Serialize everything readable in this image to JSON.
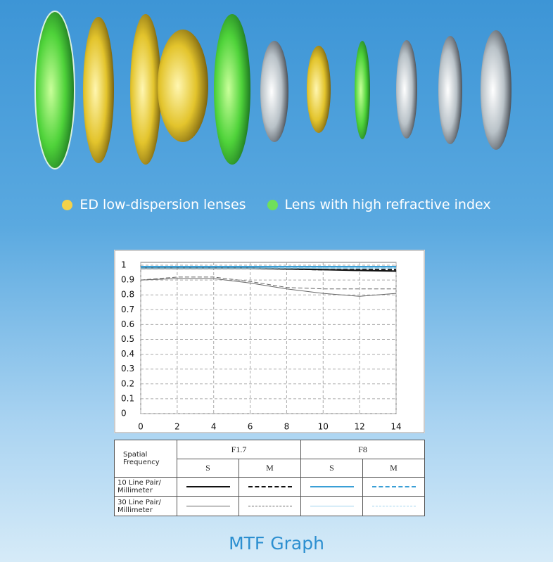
{
  "legend": [
    {
      "label": "ED low-dispersion lenses",
      "color": "#f4d24a"
    },
    {
      "label": "Lens with high refractive index",
      "color": "#6fe05a"
    }
  ],
  "chart_data": {
    "type": "line",
    "x": [
      0,
      2,
      4,
      6,
      8,
      10,
      12,
      14
    ],
    "xlim": [
      0,
      14
    ],
    "xticks": [
      0,
      2,
      4,
      6,
      8,
      10,
      12,
      14
    ],
    "ylim": [
      0,
      1
    ],
    "yticks": [
      0,
      0.1,
      0.2,
      0.3,
      0.4,
      0.5,
      0.6,
      0.7,
      0.8,
      0.9,
      1
    ],
    "grid": true,
    "series": [
      {
        "color": "#111111",
        "style": "solid",
        "weight": "bold",
        "values": [
          0.98,
          0.98,
          0.98,
          0.98,
          0.975,
          0.97,
          0.965,
          0.96
        ]
      },
      {
        "color": "#111111",
        "style": "dashed",
        "weight": "bold",
        "values": [
          0.98,
          0.98,
          0.98,
          0.98,
          0.975,
          0.97,
          0.97,
          0.97
        ]
      },
      {
        "color": "#666666",
        "style": "solid",
        "weight": "thin",
        "values": [
          0.9,
          0.91,
          0.91,
          0.88,
          0.84,
          0.81,
          0.79,
          0.81
        ]
      },
      {
        "color": "#666666",
        "style": "dashed",
        "weight": "thin",
        "values": [
          0.9,
          0.92,
          0.92,
          0.89,
          0.85,
          0.84,
          0.84,
          0.84
        ]
      },
      {
        "color": "#3a9fd6",
        "style": "solid",
        "weight": "bold",
        "values": [
          0.99,
          0.99,
          0.99,
          0.99,
          0.99,
          0.99,
          0.99,
          0.99
        ]
      },
      {
        "color": "#3a9fd6",
        "style": "dashed",
        "weight": "bold",
        "values": [
          0.99,
          0.99,
          0.99,
          0.99,
          0.99,
          0.99,
          0.99,
          0.99
        ]
      },
      {
        "color": "#9ed3ee",
        "style": "solid",
        "weight": "thin",
        "values": [
          0.98,
          0.98,
          0.98,
          0.98,
          0.98,
          0.98,
          0.98,
          0.98
        ]
      },
      {
        "color": "#9ed3ee",
        "style": "dashed",
        "weight": "thin",
        "values": [
          0.98,
          0.98,
          0.98,
          0.98,
          0.98,
          0.98,
          0.98,
          0.98
        ]
      }
    ]
  },
  "table": {
    "corner": "Spatial Frequency",
    "apertures": [
      "F1.7",
      "F8"
    ],
    "modes": [
      "S",
      "M",
      "S",
      "M"
    ],
    "rows": [
      "10 Line Pair/ Millimeter",
      "30 Line Pair/ Millimeter"
    ]
  },
  "caption": "MTF Graph"
}
